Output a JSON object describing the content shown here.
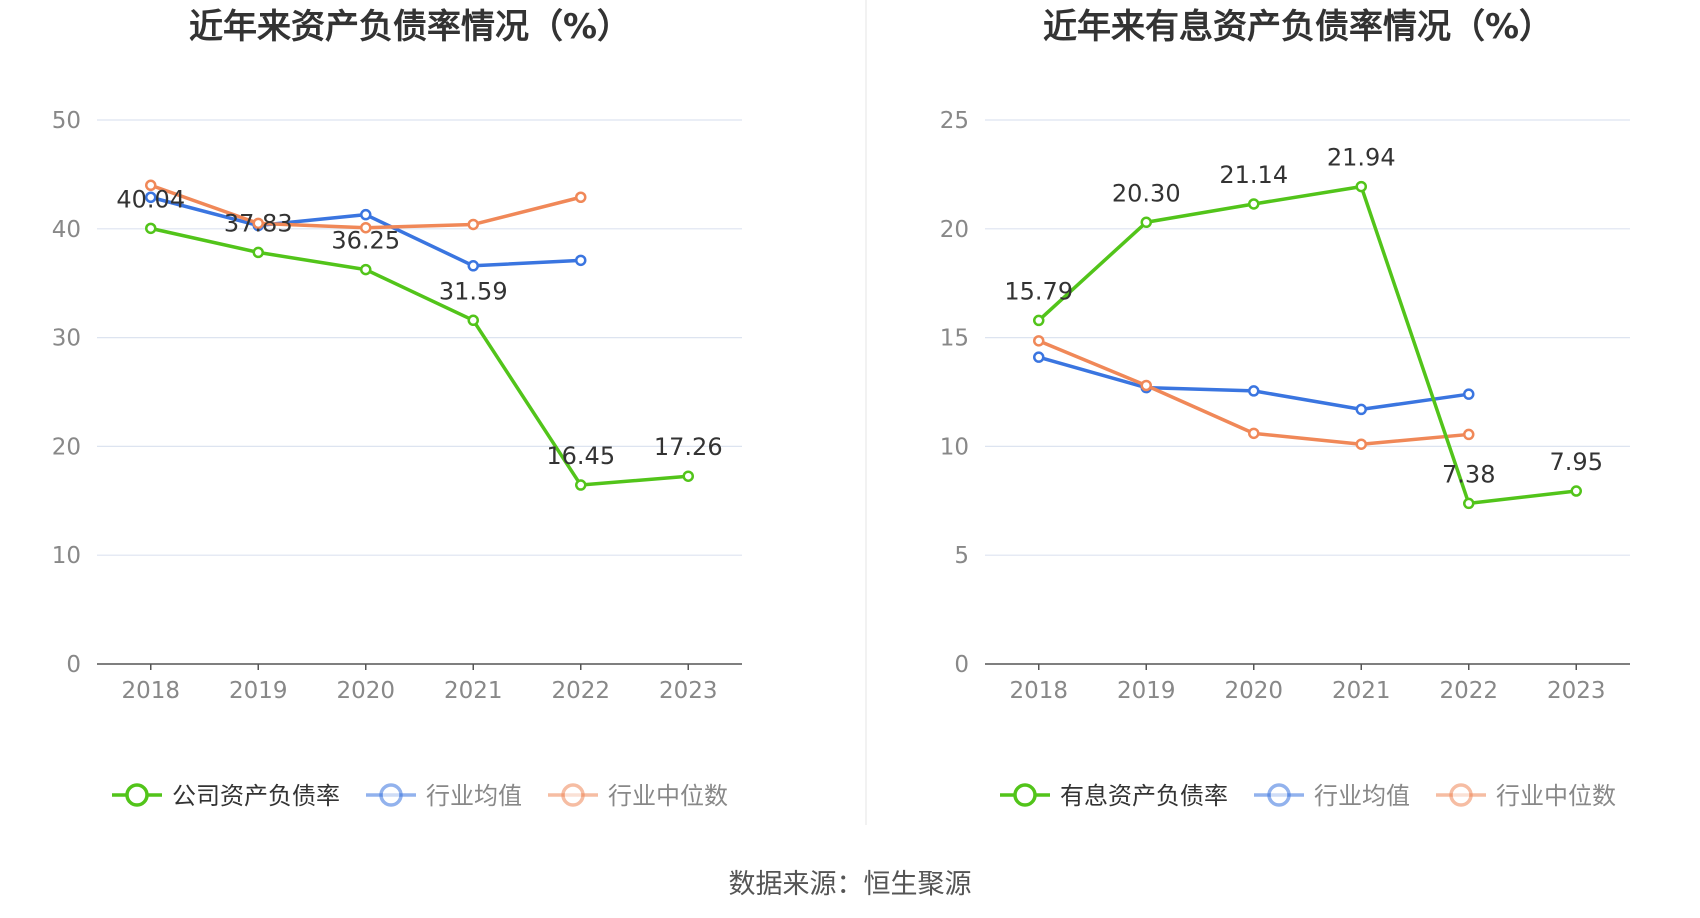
{
  "source_label": "数据来源：恒生聚源",
  "chart_data": [
    {
      "type": "line",
      "title": "近年来资产负债率情况（%）",
      "x": [
        "2018",
        "2019",
        "2020",
        "2021",
        "2022",
        "2023"
      ],
      "ylim": [
        0,
        50
      ],
      "yticks": [
        "0",
        "10",
        "20",
        "30",
        "40",
        "50"
      ],
      "grid": true,
      "legend_position": "bottom",
      "series": [
        {
          "name": "公司资产负债率",
          "color": "#52c41a",
          "values": [
            40.04,
            37.83,
            36.25,
            31.59,
            16.45,
            17.26
          ],
          "labels": [
            "40.04",
            "37.83",
            "36.25",
            "31.59",
            "16.45",
            "17.26"
          ]
        },
        {
          "name": "行业均值",
          "color": "#3a75e0",
          "values": [
            42.9,
            40.3,
            41.3,
            36.6,
            37.1,
            null
          ]
        },
        {
          "name": "行业中位数",
          "color": "#f08858",
          "values": [
            44.0,
            40.5,
            40.1,
            40.4,
            42.9,
            null
          ]
        }
      ]
    },
    {
      "type": "line",
      "title": "近年来有息资产负债率情况（%）",
      "x": [
        "2018",
        "2019",
        "2020",
        "2021",
        "2022",
        "2023"
      ],
      "ylim": [
        0,
        25
      ],
      "yticks": [
        "0",
        "5",
        "10",
        "15",
        "20",
        "25"
      ],
      "grid": true,
      "legend_position": "bottom",
      "series": [
        {
          "name": "有息资产负债率",
          "color": "#52c41a",
          "values": [
            15.79,
            20.3,
            21.14,
            21.94,
            7.38,
            7.95
          ],
          "labels": [
            "15.79",
            "20.30",
            "21.14",
            "21.94",
            "7.38",
            "7.95"
          ]
        },
        {
          "name": "行业均值",
          "color": "#3a75e0",
          "values": [
            14.1,
            12.7,
            12.55,
            11.7,
            12.4,
            null
          ]
        },
        {
          "name": "行业中位数",
          "color": "#f08858",
          "values": [
            14.85,
            12.8,
            10.6,
            10.1,
            10.55,
            null
          ]
        }
      ]
    }
  ]
}
